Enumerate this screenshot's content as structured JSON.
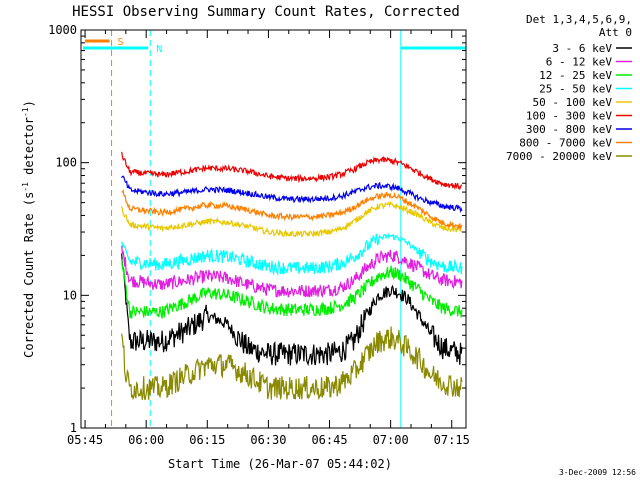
{
  "chart_data": {
    "type": "line",
    "title": "HESSI Observing Summary Count Rates, Corrected",
    "xlabel": "Start Time (26-Mar-07 05:44:02)",
    "ylabel_main": "Corrected Count Rate (s",
    "ylabel_sup1": "-1",
    "ylabel_mid": " detector",
    "ylabel_sup2": "-1",
    "ylabel_end": ")",
    "yscale": "log",
    "ylim": [
      1,
      1000
    ],
    "xlim_minutes": [
      0,
      94.5
    ],
    "x_unit": "minutes since 05:44:02",
    "x_ticks": [
      {
        "label": "05:45",
        "t": 1
      },
      {
        "label": "06:00",
        "t": 16
      },
      {
        "label": "06:15",
        "t": 31
      },
      {
        "label": "06:30",
        "t": 46
      },
      {
        "label": "06:45",
        "t": 61
      },
      {
        "label": "07:00",
        "t": 76
      },
      {
        "label": "07:15",
        "t": 91
      }
    ],
    "y_ticks": [
      {
        "label": "1",
        "v": 1
      },
      {
        "label": "10",
        "v": 10
      },
      {
        "label": "100",
        "v": 100
      },
      {
        "label": "1000",
        "v": 1000
      }
    ],
    "legend": {
      "header1": "Det 1,3,4,5,6,9,",
      "header2": "Att 0",
      "position": "right"
    },
    "series": [
      {
        "name": "3 - 6 keV",
        "color": "#000000",
        "x": [
          10,
          12,
          20,
          26,
          31,
          34,
          36,
          38,
          41,
          46,
          51,
          56,
          61,
          64,
          67,
          70,
          73,
          76,
          78,
          80,
          83,
          86,
          89,
          93.5
        ],
        "y": [
          20,
          4.5,
          4.5,
          5.5,
          7,
          6.5,
          6,
          5,
          4,
          3.6,
          3.6,
          3.6,
          3.6,
          3.8,
          4.5,
          7,
          10,
          11,
          10.5,
          9.5,
          7,
          5,
          4,
          3.6
        ]
      },
      {
        "name": "6 - 12 keV",
        "color": "#e020e0",
        "x": [
          10,
          12,
          20,
          26,
          31,
          36,
          41,
          46,
          51,
          56,
          61,
          64,
          67,
          70,
          73,
          76,
          78,
          80,
          83,
          86,
          89,
          93.5
        ],
        "y": [
          22,
          13,
          12,
          13,
          14,
          13.5,
          12,
          11,
          10.8,
          10.8,
          11,
          11.5,
          13,
          16,
          19,
          20,
          19.5,
          18,
          16,
          14,
          13,
          12.5
        ]
      },
      {
        "name": "12 - 25 keV",
        "color": "#00ee00",
        "x": [
          10,
          12,
          20,
          26,
          31,
          36,
          41,
          46,
          51,
          56,
          61,
          64,
          67,
          70,
          73,
          76,
          78,
          80,
          83,
          86,
          89,
          93.5
        ],
        "y": [
          18,
          7.5,
          7.5,
          9,
          10.5,
          10,
          9,
          8,
          7.8,
          7.8,
          8,
          8.5,
          9.5,
          11.5,
          14,
          15,
          14.5,
          13,
          11,
          9,
          8,
          7.5
        ]
      },
      {
        "name": "25 - 50 keV",
        "color": "#00ffff",
        "x": [
          10,
          12,
          20,
          26,
          31,
          36,
          41,
          46,
          51,
          56,
          61,
          64,
          67,
          70,
          73,
          76,
          78,
          80,
          83,
          86,
          89,
          93.5
        ],
        "y": [
          25,
          18,
          17,
          18.5,
          20,
          19.5,
          18,
          16.5,
          16,
          16,
          16.5,
          17.5,
          19.5,
          23,
          27,
          28,
          27,
          25,
          21,
          18,
          16.5,
          16
        ]
      },
      {
        "name": "50 - 100 keV",
        "color": "#e8c800",
        "x": [
          10,
          12,
          20,
          26,
          31,
          36,
          41,
          46,
          51,
          56,
          61,
          64,
          67,
          70,
          73,
          76,
          78,
          80,
          83,
          86,
          89,
          93.5
        ],
        "y": [
          45,
          34,
          32,
          34,
          36,
          35.5,
          33,
          30,
          29,
          29,
          30,
          32,
          36,
          42,
          47,
          48,
          46.5,
          44,
          40,
          35,
          32,
          31
        ]
      },
      {
        "name": "100 - 300 keV",
        "color": "#ee0000",
        "x": [
          10,
          12,
          20,
          26,
          31,
          36,
          41,
          46,
          51,
          56,
          61,
          64,
          67,
          70,
          73,
          76,
          78,
          80,
          83,
          86,
          89,
          93.5
        ],
        "y": [
          115,
          85,
          81,
          86,
          91,
          90,
          86,
          79,
          76,
          76,
          78,
          82,
          89,
          99,
          105,
          104,
          100,
          94,
          84,
          75,
          69,
          66
        ]
      },
      {
        "name": "300 - 800 keV",
        "color": "#0000ee",
        "x": [
          10,
          12,
          20,
          26,
          31,
          36,
          41,
          46,
          51,
          56,
          61,
          64,
          67,
          70,
          73,
          76,
          78,
          80,
          83,
          86,
          89,
          93.5
        ],
        "y": [
          80,
          62,
          58,
          60,
          63,
          62,
          59,
          55,
          53,
          53,
          54,
          56,
          60,
          65,
          67,
          66,
          64,
          60,
          54,
          50,
          47,
          45
        ]
      },
      {
        "name": "800 - 7000 keV",
        "color": "#ff8000",
        "x": [
          10,
          12,
          20,
          26,
          31,
          36,
          41,
          46,
          51,
          56,
          61,
          64,
          67,
          70,
          73,
          76,
          78,
          80,
          83,
          86,
          89,
          93.5
        ],
        "y": [
          62,
          45,
          42,
          45,
          48,
          47,
          44,
          40,
          39,
          39,
          40,
          42,
          46,
          52,
          56,
          57,
          55,
          51,
          45,
          39,
          35,
          33
        ]
      },
      {
        "name": "7000 - 20000 keV",
        "color": "#8a8a00",
        "x": [
          10,
          11,
          12,
          20,
          26,
          31,
          36,
          41,
          46,
          51,
          56,
          61,
          64,
          67,
          70,
          73,
          76,
          78,
          80,
          83,
          86,
          89,
          93.5
        ],
        "y": [
          5,
          2.5,
          2,
          2,
          2.5,
          3,
          3,
          2.5,
          2,
          2,
          2,
          2,
          2.2,
          2.6,
          3.5,
          4.5,
          4.8,
          4.5,
          4,
          3.3,
          2.5,
          2.2,
          2
        ]
      }
    ],
    "markers": [
      {
        "label": "S",
        "color": "#ff8000",
        "kind": "bar",
        "t0": 0.5,
        "t1": 7.5
      },
      {
        "label": "N",
        "color": "#00ffff",
        "kind": "bar",
        "t0": 0,
        "t1": 17,
        "t2": 78.5,
        "t3": 94.5
      }
    ],
    "vlines": [
      {
        "t": 7.5,
        "color": "#ff8000",
        "style": "dashed"
      },
      {
        "t": 17,
        "color": "#00ffff",
        "style": "dashed"
      },
      {
        "t": 78.5,
        "color": "#00ffff",
        "style": "solid"
      },
      {
        "t": 94.5,
        "color": "#00ffff",
        "style": "dashed"
      }
    ],
    "footer_date": "3-Dec-2009 12:56"
  }
}
